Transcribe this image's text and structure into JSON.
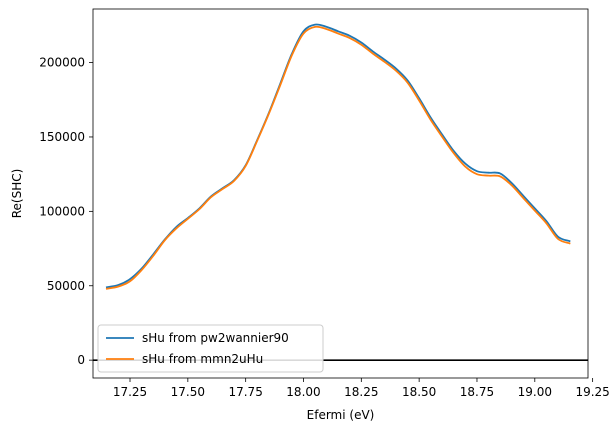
{
  "chart_data": {
    "type": "line",
    "title": "",
    "xlabel": "Efermi (eV)",
    "ylabel": "Re(SHC)",
    "xlim": [
      17.09,
      19.23
    ],
    "ylim": [
      -12000,
      236000
    ],
    "xticks": [
      17.25,
      17.5,
      17.75,
      18.0,
      18.25,
      18.5,
      18.75,
      19.0,
      19.25
    ],
    "xtick_labels": [
      "17.25",
      "17.50",
      "17.75",
      "18.00",
      "18.25",
      "18.50",
      "18.75",
      "19.00",
      "19.25"
    ],
    "yticks": [
      0,
      50000,
      100000,
      150000,
      200000
    ],
    "ytick_labels": [
      "0",
      "50000",
      "100000",
      "150000",
      "200000"
    ],
    "grid": false,
    "legend": {
      "placement": "lower-left"
    },
    "reference_line": {
      "y": 0,
      "color": "#000000"
    },
    "series": [
      {
        "name": "sHu from pw2wannier90",
        "color": "#1f77b4",
        "x": [
          17.15,
          17.2,
          17.25,
          17.3,
          17.35,
          17.4,
          17.45,
          17.5,
          17.55,
          17.6,
          17.65,
          17.7,
          17.75,
          17.8,
          17.85,
          17.9,
          17.95,
          18.0,
          18.05,
          18.1,
          18.15,
          18.2,
          18.25,
          18.3,
          18.35,
          18.4,
          18.45,
          18.5,
          18.55,
          18.6,
          18.65,
          18.7,
          18.75,
          18.8,
          18.85,
          18.9,
          18.95,
          19.0,
          19.05,
          19.1,
          19.15
        ],
        "y": [
          49000,
          50500,
          54500,
          61500,
          71000,
          81000,
          89500,
          95500,
          102000,
          110000,
          115500,
          121000,
          131000,
          148000,
          166000,
          186000,
          206000,
          221000,
          225500,
          224000,
          221000,
          218000,
          213500,
          207500,
          202000,
          196000,
          188000,
          176000,
          163000,
          151500,
          140500,
          132000,
          127000,
          126000,
          125500,
          119000,
          110500,
          102000,
          93500,
          83000,
          80000
        ]
      },
      {
        "name": "sHu from mmn2uHu",
        "color": "#ff7f0e",
        "x": [
          17.15,
          17.2,
          17.25,
          17.3,
          17.35,
          17.4,
          17.45,
          17.5,
          17.55,
          17.6,
          17.65,
          17.7,
          17.75,
          17.8,
          17.85,
          17.9,
          17.95,
          18.0,
          18.05,
          18.1,
          18.15,
          18.2,
          18.25,
          18.3,
          18.35,
          18.4,
          18.45,
          18.5,
          18.55,
          18.6,
          18.65,
          18.7,
          18.75,
          18.8,
          18.85,
          18.9,
          18.95,
          19.0,
          19.05,
          19.1,
          19.15
        ],
        "y": [
          48000,
          49500,
          53000,
          60500,
          70000,
          80500,
          88500,
          95000,
          101500,
          109500,
          115000,
          120500,
          130500,
          147500,
          165500,
          185000,
          205000,
          219500,
          224000,
          222500,
          219500,
          216500,
          212000,
          206000,
          200500,
          194500,
          186500,
          174500,
          161500,
          150000,
          139000,
          130000,
          125000,
          124000,
          123500,
          117500,
          109000,
          100500,
          92000,
          81500,
          78500
        ]
      }
    ]
  }
}
